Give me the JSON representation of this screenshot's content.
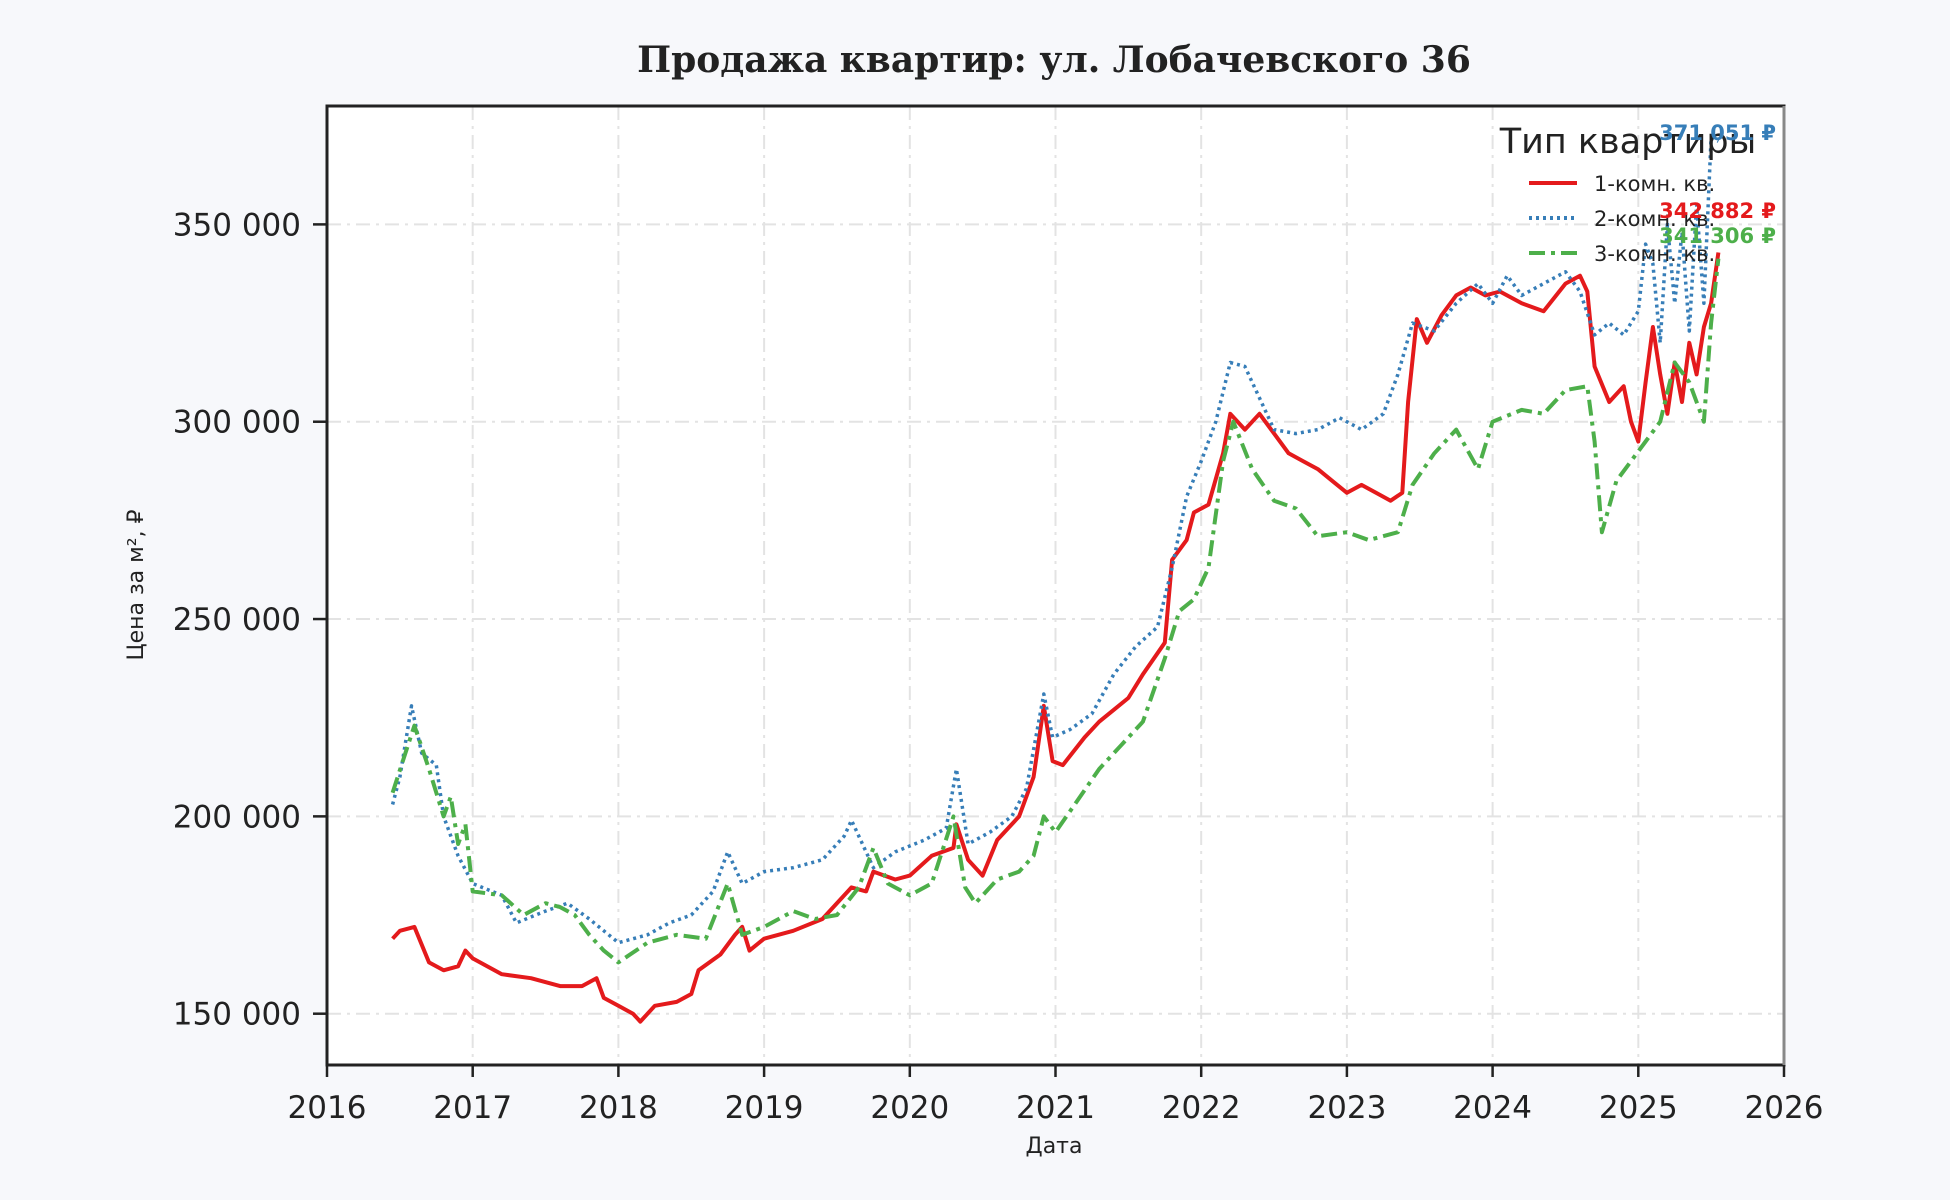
{
  "chart_data": {
    "type": "line",
    "title": "Продажа квартир: ул. Лобачевского 36",
    "xlabel": "Дата",
    "ylabel": "Цена за м², ₽",
    "xlim": [
      2016,
      2026
    ],
    "ylim": [
      137000,
      380000
    ],
    "x_ticks": [
      2016,
      2017,
      2018,
      2019,
      2020,
      2021,
      2022,
      2023,
      2024,
      2025,
      2026
    ],
    "x_tick_labels": [
      "2016",
      "2017",
      "2018",
      "2019",
      "2020",
      "2021",
      "2022",
      "2023",
      "2024",
      "2025",
      "2026"
    ],
    "y_ticks": [
      150000,
      200000,
      250000,
      300000,
      350000
    ],
    "y_tick_labels": [
      "150 000",
      "200 000",
      "250 000",
      "300 000",
      "350 000"
    ],
    "grid": true,
    "legend": {
      "title": "Тип квартиры",
      "placement": "top-right"
    },
    "series": [
      {
        "name": "1-комн. кв.",
        "color": "#e41a1c",
        "style": "solid",
        "last_label": "342 882 ₽",
        "points": [
          [
            2016.45,
            169000
          ],
          [
            2016.5,
            171000
          ],
          [
            2016.6,
            172000
          ],
          [
            2016.7,
            163000
          ],
          [
            2016.8,
            161000
          ],
          [
            2016.9,
            162000
          ],
          [
            2016.95,
            166000
          ],
          [
            2017.0,
            164000
          ],
          [
            2017.2,
            160000
          ],
          [
            2017.4,
            159000
          ],
          [
            2017.6,
            157000
          ],
          [
            2017.75,
            157000
          ],
          [
            2017.85,
            159000
          ],
          [
            2017.9,
            154000
          ],
          [
            2018.0,
            152000
          ],
          [
            2018.1,
            150000
          ],
          [
            2018.15,
            148000
          ],
          [
            2018.25,
            152000
          ],
          [
            2018.4,
            153000
          ],
          [
            2018.5,
            155000
          ],
          [
            2018.55,
            161000
          ],
          [
            2018.7,
            165000
          ],
          [
            2018.8,
            170000
          ],
          [
            2018.85,
            172000
          ],
          [
            2018.9,
            166000
          ],
          [
            2019.0,
            169000
          ],
          [
            2019.2,
            171000
          ],
          [
            2019.4,
            174000
          ],
          [
            2019.6,
            182000
          ],
          [
            2019.7,
            181000
          ],
          [
            2019.75,
            186000
          ],
          [
            2019.9,
            184000
          ],
          [
            2020.0,
            185000
          ],
          [
            2020.15,
            190000
          ],
          [
            2020.3,
            192000
          ],
          [
            2020.32,
            198000
          ],
          [
            2020.4,
            189000
          ],
          [
            2020.5,
            185000
          ],
          [
            2020.6,
            194000
          ],
          [
            2020.75,
            200000
          ],
          [
            2020.85,
            210000
          ],
          [
            2020.92,
            228000
          ],
          [
            2020.98,
            214000
          ],
          [
            2021.05,
            213000
          ],
          [
            2021.2,
            220000
          ],
          [
            2021.3,
            224000
          ],
          [
            2021.4,
            227000
          ],
          [
            2021.5,
            230000
          ],
          [
            2021.6,
            236000
          ],
          [
            2021.75,
            244000
          ],
          [
            2021.8,
            265000
          ],
          [
            2021.9,
            270000
          ],
          [
            2021.95,
            277000
          ],
          [
            2022.05,
            279000
          ],
          [
            2022.15,
            292000
          ],
          [
            2022.2,
            302000
          ],
          [
            2022.3,
            298000
          ],
          [
            2022.4,
            302000
          ],
          [
            2022.5,
            297000
          ],
          [
            2022.6,
            292000
          ],
          [
            2022.7,
            290000
          ],
          [
            2022.8,
            288000
          ],
          [
            2022.9,
            285000
          ],
          [
            2023.0,
            282000
          ],
          [
            2023.1,
            284000
          ],
          [
            2023.2,
            282000
          ],
          [
            2023.3,
            280000
          ],
          [
            2023.38,
            282000
          ],
          [
            2023.42,
            305000
          ],
          [
            2023.48,
            326000
          ],
          [
            2023.55,
            320000
          ],
          [
            2023.65,
            327000
          ],
          [
            2023.75,
            332000
          ],
          [
            2023.85,
            334000
          ],
          [
            2023.95,
            332000
          ],
          [
            2024.05,
            333000
          ],
          [
            2024.2,
            330000
          ],
          [
            2024.35,
            328000
          ],
          [
            2024.5,
            335000
          ],
          [
            2024.6,
            337000
          ],
          [
            2024.65,
            333000
          ],
          [
            2024.7,
            314000
          ],
          [
            2024.8,
            305000
          ],
          [
            2024.9,
            309000
          ],
          [
            2024.95,
            300000
          ],
          [
            2025.0,
            295000
          ],
          [
            2025.05,
            310000
          ],
          [
            2025.1,
            324000
          ],
          [
            2025.15,
            312000
          ],
          [
            2025.2,
            302000
          ],
          [
            2025.25,
            315000
          ],
          [
            2025.3,
            305000
          ],
          [
            2025.35,
            320000
          ],
          [
            2025.4,
            312000
          ],
          [
            2025.45,
            324000
          ],
          [
            2025.5,
            330000
          ],
          [
            2025.55,
            342882
          ]
        ]
      },
      {
        "name": "2-комн. кв.",
        "color": "#377eb8",
        "style": "dotted",
        "last_label": "371 051 ₽",
        "points": [
          [
            2016.45,
            203000
          ],
          [
            2016.5,
            210000
          ],
          [
            2016.58,
            228000
          ],
          [
            2016.65,
            216000
          ],
          [
            2016.75,
            213000
          ],
          [
            2016.8,
            200000
          ],
          [
            2016.9,
            190000
          ],
          [
            2017.0,
            183000
          ],
          [
            2017.2,
            180000
          ],
          [
            2017.3,
            173000
          ],
          [
            2017.5,
            176000
          ],
          [
            2017.65,
            178000
          ],
          [
            2017.8,
            174000
          ],
          [
            2017.9,
            171000
          ],
          [
            2018.0,
            168000
          ],
          [
            2018.2,
            170000
          ],
          [
            2018.35,
            173000
          ],
          [
            2018.5,
            175000
          ],
          [
            2018.65,
            181000
          ],
          [
            2018.75,
            191000
          ],
          [
            2018.85,
            183000
          ],
          [
            2019.0,
            186000
          ],
          [
            2019.2,
            187000
          ],
          [
            2019.4,
            189000
          ],
          [
            2019.55,
            195000
          ],
          [
            2019.6,
            199000
          ],
          [
            2019.75,
            187000
          ],
          [
            2019.9,
            191000
          ],
          [
            2020.1,
            194000
          ],
          [
            2020.25,
            197000
          ],
          [
            2020.32,
            212000
          ],
          [
            2020.4,
            193000
          ],
          [
            2020.55,
            196000
          ],
          [
            2020.7,
            200000
          ],
          [
            2020.8,
            207000
          ],
          [
            2020.92,
            231000
          ],
          [
            2020.98,
            220000
          ],
          [
            2021.1,
            222000
          ],
          [
            2021.25,
            226000
          ],
          [
            2021.4,
            236000
          ],
          [
            2021.55,
            243000
          ],
          [
            2021.7,
            248000
          ],
          [
            2021.8,
            263000
          ],
          [
            2021.9,
            281000
          ],
          [
            2022.0,
            290000
          ],
          [
            2022.1,
            300000
          ],
          [
            2022.2,
            315000
          ],
          [
            2022.3,
            314000
          ],
          [
            2022.4,
            306000
          ],
          [
            2022.5,
            298000
          ],
          [
            2022.65,
            297000
          ],
          [
            2022.8,
            298000
          ],
          [
            2022.95,
            301000
          ],
          [
            2023.1,
            298000
          ],
          [
            2023.25,
            302000
          ],
          [
            2023.35,
            312000
          ],
          [
            2023.45,
            325000
          ],
          [
            2023.6,
            323000
          ],
          [
            2023.75,
            330000
          ],
          [
            2023.9,
            335000
          ],
          [
            2024.0,
            330000
          ],
          [
            2024.1,
            337000
          ],
          [
            2024.2,
            332000
          ],
          [
            2024.35,
            335000
          ],
          [
            2024.5,
            338000
          ],
          [
            2024.6,
            333000
          ],
          [
            2024.7,
            322000
          ],
          [
            2024.8,
            325000
          ],
          [
            2024.9,
            322000
          ],
          [
            2025.0,
            328000
          ],
          [
            2025.05,
            345000
          ],
          [
            2025.1,
            340000
          ],
          [
            2025.15,
            320000
          ],
          [
            2025.2,
            350000
          ],
          [
            2025.25,
            330000
          ],
          [
            2025.3,
            348000
          ],
          [
            2025.35,
            323000
          ],
          [
            2025.4,
            355000
          ],
          [
            2025.45,
            330000
          ],
          [
            2025.5,
            372000
          ],
          [
            2025.55,
            371051
          ]
        ]
      },
      {
        "name": "3-комн. кв.",
        "color": "#4daf4a",
        "style": "dashdot",
        "last_label": "341 306 ₽",
        "points": [
          [
            2016.45,
            206000
          ],
          [
            2016.52,
            214000
          ],
          [
            2016.6,
            223000
          ],
          [
            2016.7,
            212000
          ],
          [
            2016.8,
            200000
          ],
          [
            2016.85,
            205000
          ],
          [
            2016.9,
            193000
          ],
          [
            2016.95,
            198000
          ],
          [
            2017.0,
            181000
          ],
          [
            2017.2,
            180000
          ],
          [
            2017.35,
            175000
          ],
          [
            2017.5,
            178000
          ],
          [
            2017.6,
            177000
          ],
          [
            2017.7,
            175000
          ],
          [
            2017.8,
            170000
          ],
          [
            2017.9,
            166000
          ],
          [
            2018.0,
            163000
          ],
          [
            2018.2,
            168000
          ],
          [
            2018.4,
            170000
          ],
          [
            2018.6,
            169000
          ],
          [
            2018.75,
            183000
          ],
          [
            2018.85,
            170000
          ],
          [
            2019.0,
            172000
          ],
          [
            2019.2,
            176000
          ],
          [
            2019.35,
            174000
          ],
          [
            2019.5,
            175000
          ],
          [
            2019.65,
            182000
          ],
          [
            2019.75,
            192000
          ],
          [
            2019.85,
            183000
          ],
          [
            2020.0,
            180000
          ],
          [
            2020.15,
            183000
          ],
          [
            2020.3,
            200000
          ],
          [
            2020.38,
            182000
          ],
          [
            2020.45,
            178000
          ],
          [
            2020.6,
            184000
          ],
          [
            2020.75,
            186000
          ],
          [
            2020.85,
            190000
          ],
          [
            2020.92,
            200000
          ],
          [
            2021.0,
            196000
          ],
          [
            2021.15,
            204000
          ],
          [
            2021.3,
            212000
          ],
          [
            2021.45,
            218000
          ],
          [
            2021.6,
            224000
          ],
          [
            2021.75,
            240000
          ],
          [
            2021.85,
            252000
          ],
          [
            2021.95,
            255000
          ],
          [
            2022.05,
            263000
          ],
          [
            2022.15,
            290000
          ],
          [
            2022.22,
            300000
          ],
          [
            2022.35,
            288000
          ],
          [
            2022.5,
            280000
          ],
          [
            2022.65,
            278000
          ],
          [
            2022.8,
            271000
          ],
          [
            2023.0,
            272000
          ],
          [
            2023.15,
            270000
          ],
          [
            2023.35,
            272000
          ],
          [
            2023.45,
            284000
          ],
          [
            2023.6,
            292000
          ],
          [
            2023.75,
            298000
          ],
          [
            2023.9,
            288000
          ],
          [
            2024.0,
            300000
          ],
          [
            2024.2,
            303000
          ],
          [
            2024.35,
            302000
          ],
          [
            2024.5,
            308000
          ],
          [
            2024.65,
            309000
          ],
          [
            2024.7,
            295000
          ],
          [
            2024.75,
            272000
          ],
          [
            2024.85,
            285000
          ],
          [
            2024.95,
            290000
          ],
          [
            2025.05,
            295000
          ],
          [
            2025.15,
            300000
          ],
          [
            2025.25,
            315000
          ],
          [
            2025.35,
            310000
          ],
          [
            2025.45,
            300000
          ],
          [
            2025.5,
            325000
          ],
          [
            2025.55,
            341306
          ]
        ]
      }
    ]
  }
}
